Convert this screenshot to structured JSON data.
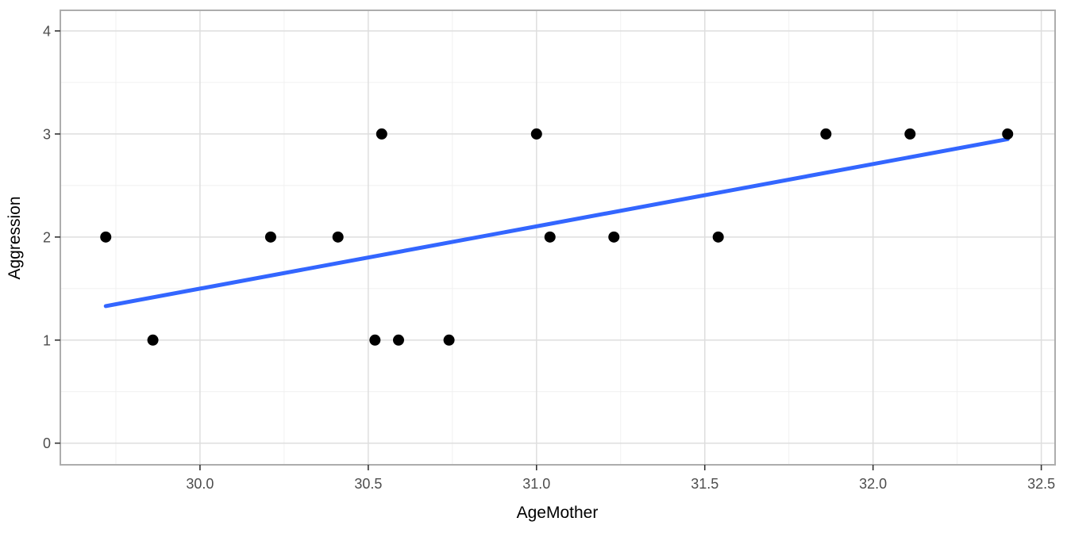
{
  "chart_data": {
    "type": "scatter",
    "title": "",
    "xlabel": "AgeMother",
    "ylabel": "Aggression",
    "xlim": [
      29.585,
      32.541
    ],
    "ylim": [
      -0.21,
      4.2
    ],
    "x_major_ticks": [
      30.0,
      30.5,
      31.0,
      31.5,
      32.0,
      32.5
    ],
    "x_tick_labels": [
      "30.0",
      "30.5",
      "31.0",
      "31.5",
      "32.0",
      "32.5"
    ],
    "x_minor_ticks": [
      29.75,
      30.25,
      30.75,
      31.25,
      31.75,
      32.25
    ],
    "y_major_ticks": [
      0,
      1,
      2,
      3,
      4
    ],
    "y_tick_labels": [
      "0",
      "1",
      "2",
      "3",
      "4"
    ],
    "y_minor_ticks": [
      0.5,
      1.5,
      2.5,
      3.5
    ],
    "grid": true,
    "legend": "none",
    "points": [
      [
        29.72,
        2
      ],
      [
        29.86,
        1
      ],
      [
        30.21,
        2
      ],
      [
        30.41,
        2
      ],
      [
        30.52,
        1
      ],
      [
        30.54,
        3
      ],
      [
        30.59,
        1
      ],
      [
        30.74,
        1
      ],
      [
        31.0,
        3
      ],
      [
        31.04,
        2
      ],
      [
        31.23,
        2
      ],
      [
        31.54,
        2
      ],
      [
        31.86,
        3
      ],
      [
        32.11,
        3
      ],
      [
        32.4,
        3
      ]
    ],
    "regression_line": {
      "x1": 29.72,
      "y1": 1.33,
      "x2": 32.4,
      "y2": 2.95
    },
    "colors": {
      "point": "#000000",
      "line": "#3366FF",
      "grid_major": "#DEDEDE",
      "grid_minor": "#EFEFEF",
      "panel_border": "#ADADAD",
      "tick": "#333333",
      "tick_label": "#4D4D4D",
      "axis_title": "#000000",
      "background": "#FFFFFF"
    }
  }
}
